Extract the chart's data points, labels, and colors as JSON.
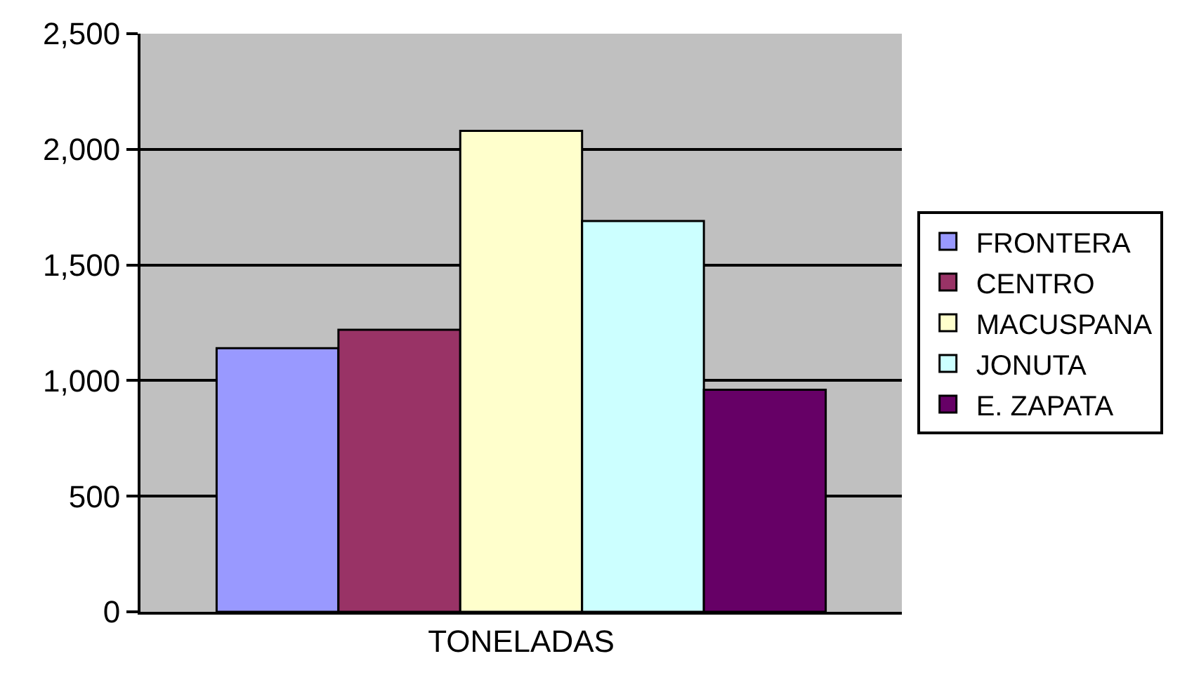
{
  "chart_data": {
    "type": "bar",
    "categories": [
      "TONELADAS"
    ],
    "series": [
      {
        "name": "FRONTERA",
        "color": "#9999ff",
        "values": [
          1140
        ]
      },
      {
        "name": "CENTRO",
        "color": "#993366",
        "values": [
          1220
        ]
      },
      {
        "name": "MACUSPANA",
        "color": "#ffffcc",
        "values": [
          2080
        ]
      },
      {
        "name": "JONUTA",
        "color": "#ccffff",
        "values": [
          1690
        ]
      },
      {
        "name": "E. ZAPATA",
        "color": "#660066",
        "values": [
          960
        ]
      }
    ],
    "ylim": [
      0,
      2500
    ],
    "yticks": [
      0,
      {
        "value": 500,
        "label": "500"
      },
      {
        "value": 1000,
        "label": "1,000"
      },
      {
        "value": 1500,
        "label": "1,500"
      },
      {
        "value": 2000,
        "label": "2,000"
      },
      {
        "value": 2500,
        "label": "2,500"
      }
    ],
    "grid": "y",
    "legend": "right"
  }
}
